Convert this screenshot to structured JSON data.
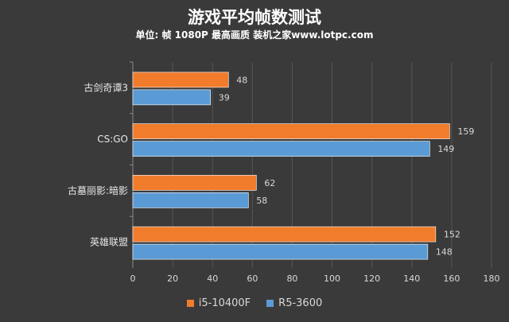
{
  "chart_data": {
    "type": "bar",
    "orientation": "horizontal",
    "title": "游戏平均帧数测试",
    "subtitle": "单位: 帧  1080P 最高画质 装机之家www.lotpc.com",
    "categories": [
      "古剑奇谭3",
      "CS:GO",
      "古墓丽影:暗影",
      "英雄联盟"
    ],
    "series": [
      {
        "name": "i5-10400F",
        "values": [
          48,
          159,
          62,
          152
        ],
        "color": "#f07c2c"
      },
      {
        "name": "R5-3600",
        "values": [
          39,
          149,
          58,
          148
        ],
        "color": "#5b9bd5"
      }
    ],
    "xlim": [
      0,
      180
    ],
    "xticks": [
      0,
      20,
      40,
      60,
      80,
      100,
      120,
      140,
      160,
      180
    ],
    "grid": true,
    "legend_position": "bottom"
  }
}
